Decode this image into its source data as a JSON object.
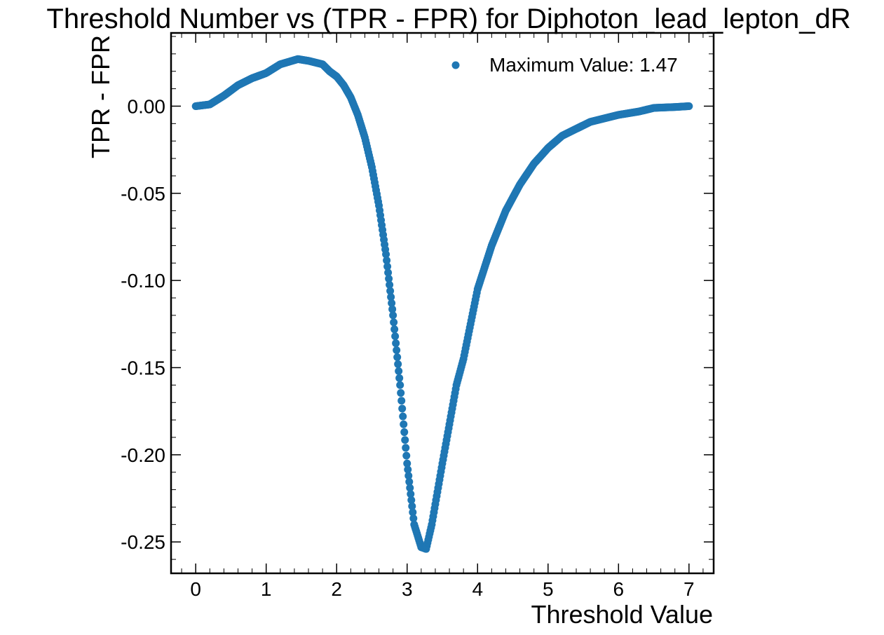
{
  "chart_data": {
    "type": "scatter",
    "title": "Threshold Number vs (TPR - FPR) for Diphoton_lead_lepton_dR",
    "xlabel": "Threshold Value",
    "ylabel": "TPR - FPR",
    "xlim": [
      -0.35,
      7.35
    ],
    "ylim": [
      -0.268,
      0.042
    ],
    "x_ticks": [
      0,
      1,
      2,
      3,
      4,
      5,
      6,
      7
    ],
    "x_tick_labels": [
      "0",
      "1",
      "2",
      "3",
      "4",
      "5",
      "6",
      "7"
    ],
    "y_ticks": [
      0.0,
      -0.05,
      -0.1,
      -0.15,
      -0.2,
      -0.25
    ],
    "y_tick_labels": [
      "0.00",
      "-0.05",
      "-0.10",
      "-0.15",
      "-0.20",
      "-0.25"
    ],
    "grid": false,
    "legend": {
      "label": "Maximum Value: 1.47",
      "placement": "top-right"
    },
    "series": [
      {
        "name": "Maximum Value: 1.47",
        "color": "#1f77b4",
        "step": 0.01,
        "anchors": [
          [
            0.0,
            0.0
          ],
          [
            0.2,
            0.001
          ],
          [
            0.4,
            0.006
          ],
          [
            0.6,
            0.012
          ],
          [
            0.8,
            0.016
          ],
          [
            1.0,
            0.019
          ],
          [
            1.2,
            0.024
          ],
          [
            1.45,
            0.027
          ],
          [
            1.6,
            0.026
          ],
          [
            1.8,
            0.024
          ],
          [
            1.9,
            0.02
          ],
          [
            2.0,
            0.017
          ],
          [
            2.1,
            0.012
          ],
          [
            2.2,
            0.005
          ],
          [
            2.3,
            -0.005
          ],
          [
            2.4,
            -0.018
          ],
          [
            2.5,
            -0.035
          ],
          [
            2.6,
            -0.057
          ],
          [
            2.7,
            -0.085
          ],
          [
            2.8,
            -0.12
          ],
          [
            2.9,
            -0.16
          ],
          [
            3.0,
            -0.205
          ],
          [
            3.1,
            -0.24
          ],
          [
            3.2,
            -0.253
          ],
          [
            3.27,
            -0.254
          ],
          [
            3.35,
            -0.24
          ],
          [
            3.5,
            -0.205
          ],
          [
            3.7,
            -0.16
          ],
          [
            3.8,
            -0.145
          ],
          [
            3.9,
            -0.125
          ],
          [
            4.0,
            -0.105
          ],
          [
            4.2,
            -0.08
          ],
          [
            4.4,
            -0.06
          ],
          [
            4.6,
            -0.045
          ],
          [
            4.8,
            -0.033
          ],
          [
            5.0,
            -0.024
          ],
          [
            5.2,
            -0.017
          ],
          [
            5.4,
            -0.013
          ],
          [
            5.6,
            -0.009
          ],
          [
            5.8,
            -0.007
          ],
          [
            6.0,
            -0.005
          ],
          [
            6.3,
            -0.003
          ],
          [
            6.5,
            -0.001
          ],
          [
            6.8,
            -0.0005
          ],
          [
            7.0,
            0.0
          ]
        ]
      }
    ]
  }
}
